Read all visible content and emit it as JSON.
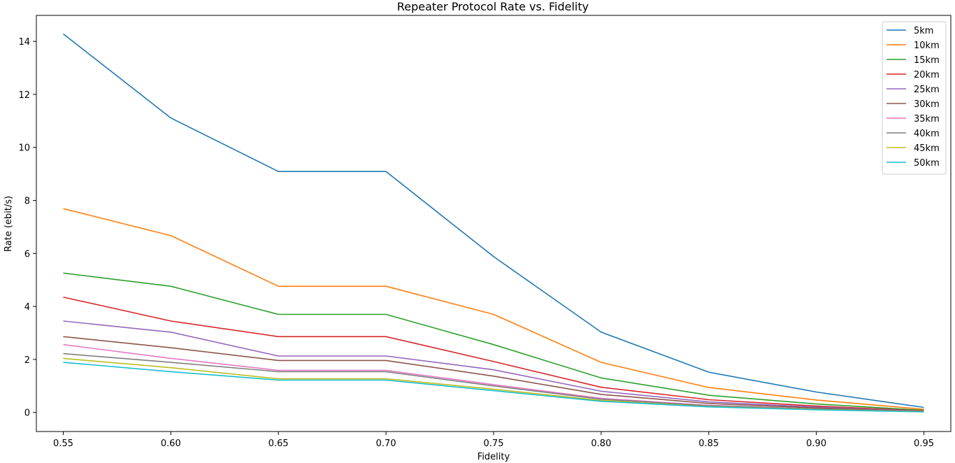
{
  "chart_data": {
    "type": "line",
    "title": "Repeater Protocol Rate vs. Fidelity",
    "xlabel": "Fidelity",
    "ylabel": "Rate (ebit/s)",
    "x": [
      0.55,
      0.6,
      0.65,
      0.7,
      0.75,
      0.8,
      0.85,
      0.9,
      0.95
    ],
    "x_ticks": [
      "0.55",
      "0.60",
      "0.65",
      "0.70",
      "0.75",
      "0.80",
      "0.85",
      "0.90",
      "0.95"
    ],
    "y_ticks": [
      "0",
      "2",
      "4",
      "6",
      "8",
      "10",
      "12",
      "14"
    ],
    "xlim": [
      0.5375,
      0.9625
    ],
    "ylim": [
      -0.72,
      14.98
    ],
    "grid": false,
    "legend_position": "top-right",
    "series": [
      {
        "name": "5km",
        "color": "#1f77b4",
        "values": [
          14.28,
          11.11,
          9.09,
          9.09,
          5.88,
          3.03,
          1.52,
          0.77,
          0.19
        ]
      },
      {
        "name": "10km",
        "color": "#ff7f0e",
        "values": [
          7.69,
          6.67,
          4.76,
          4.76,
          3.7,
          1.89,
          0.94,
          0.47,
          0.12
        ]
      },
      {
        "name": "15km",
        "color": "#2ca02c",
        "values": [
          5.26,
          4.76,
          3.7,
          3.7,
          2.56,
          1.3,
          0.65,
          0.32,
          0.08
        ]
      },
      {
        "name": "20km",
        "color": "#d62728",
        "values": [
          4.35,
          3.45,
          2.86,
          2.86,
          1.92,
          0.95,
          0.48,
          0.24,
          0.06
        ]
      },
      {
        "name": "25km",
        "color": "#9467bd",
        "values": [
          3.45,
          3.03,
          2.13,
          2.13,
          1.61,
          0.8,
          0.4,
          0.2,
          0.05
        ]
      },
      {
        "name": "30km",
        "color": "#8c564b",
        "values": [
          2.86,
          2.44,
          1.96,
          1.96,
          1.37,
          0.68,
          0.34,
          0.17,
          0.04
        ]
      },
      {
        "name": "35km",
        "color": "#e377c2",
        "values": [
          2.56,
          2.04,
          1.59,
          1.59,
          1.05,
          0.53,
          0.27,
          0.13,
          0.03
        ]
      },
      {
        "name": "40km",
        "color": "#7f7f7f",
        "values": [
          2.22,
          1.89,
          1.54,
          1.54,
          1.0,
          0.5,
          0.25,
          0.13,
          0.03
        ]
      },
      {
        "name": "45km",
        "color": "#bcbd22",
        "values": [
          2.04,
          1.69,
          1.27,
          1.27,
          0.88,
          0.45,
          0.22,
          0.11,
          0.03
        ]
      },
      {
        "name": "50km",
        "color": "#17becf",
        "values": [
          1.89,
          1.54,
          1.22,
          1.22,
          0.82,
          0.42,
          0.21,
          0.1,
          0.02
        ]
      }
    ]
  }
}
